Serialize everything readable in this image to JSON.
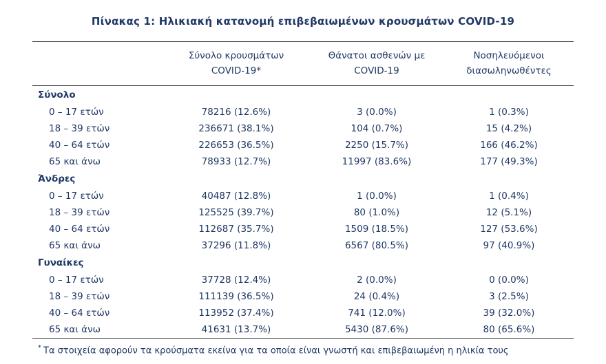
{
  "title": "Πίνακας 1: Ηλικιακή κατανομή επιβεβαιωμένων κρουσμάτων COVID-19",
  "table": {
    "headers": [
      "Σύνολο κρουσμάτων\nCOVID-19*",
      "Θάνατοι ασθενών με\nCOVID-19",
      "Νοσηλευόμενοι\nδιασωληνωθέντες"
    ],
    "sections": [
      {
        "label": "Σύνολο",
        "rows": [
          {
            "label": "0 – 17 ετών",
            "cases": "78216 (12.6%)",
            "deaths": "3 (0.0%)",
            "icu": "1 (0.3%)"
          },
          {
            "label": "18 – 39 ετών",
            "cases": "236671 (38.1%)",
            "deaths": "104 (0.7%)",
            "icu": "15 (4.2%)"
          },
          {
            "label": "40 – 64 ετών",
            "cases": "226653 (36.5%)",
            "deaths": "2250 (15.7%)",
            "icu": "166 (46.2%)"
          },
          {
            "label": "65 και άνω",
            "cases": "78933 (12.7%)",
            "deaths": "11997 (83.6%)",
            "icu": "177 (49.3%)"
          }
        ]
      },
      {
        "label": "Άνδρες",
        "rows": [
          {
            "label": "0 – 17 ετών",
            "cases": "40487 (12.8%)",
            "deaths": "1 (0.0%)",
            "icu": "1 (0.4%)"
          },
          {
            "label": "18 – 39 ετών",
            "cases": "125525 (39.7%)",
            "deaths": "80 (1.0%)",
            "icu": "12 (5.1%)"
          },
          {
            "label": "40 – 64 ετών",
            "cases": "112687 (35.7%)",
            "deaths": "1509 (18.5%)",
            "icu": "127 (53.6%)"
          },
          {
            "label": "65 και άνω",
            "cases": "37296 (11.8%)",
            "deaths": "6567 (80.5%)",
            "icu": "97 (40.9%)"
          }
        ]
      },
      {
        "label": "Γυναίκες",
        "rows": [
          {
            "label": "0 – 17 ετών",
            "cases": "37728 (12.4%)",
            "deaths": "2 (0.0%)",
            "icu": "0 (0.0%)"
          },
          {
            "label": "18 – 39 ετών",
            "cases": "111139 (36.5%)",
            "deaths": "24 (0.4%)",
            "icu": "3 (2.5%)"
          },
          {
            "label": "40 – 64 ετών",
            "cases": "113952 (37.4%)",
            "deaths": "741 (12.0%)",
            "icu": "39 (32.0%)"
          },
          {
            "label": "65 και άνω",
            "cases": "41631 (13.7%)",
            "deaths": "5430 (87.6%)",
            "icu": "80 (65.6%)"
          }
        ]
      }
    ]
  },
  "footnote": {
    "marker": "*",
    "text": "Τα στοιχεία αφορούν τα κρούσματα εκείνα για τα οποία είναι γνωστή και επιβεβαιωμένη η ηλικία τους"
  }
}
